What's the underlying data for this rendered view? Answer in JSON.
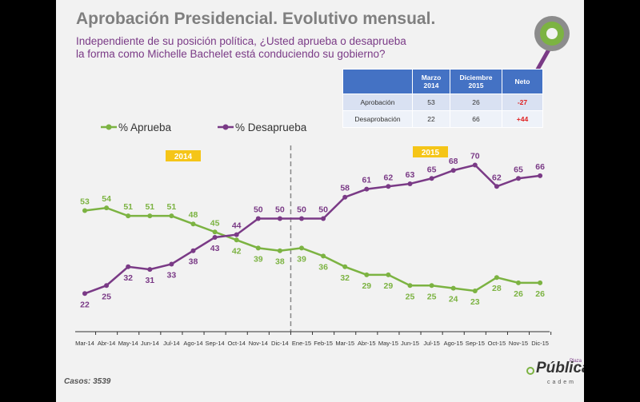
{
  "header": {
    "title": "Aprobación Presidencial. Evolutivo mensual.",
    "subtitle": "Independiente de su posición política, ¿Usted aprueba o desaprueba la forma como Michelle Bachelet está conduciendo su gobierno?"
  },
  "summary_table": {
    "headers": [
      "",
      "Marzo 2014",
      "Diciembre 2015",
      "Neto"
    ],
    "rows": [
      {
        "label": "Aprobación",
        "marzo": "53",
        "diciembre": "26",
        "neto": "-27"
      },
      {
        "label": "Desaprobación",
        "marzo": "22",
        "diciembre": "66",
        "neto": "+44"
      }
    ]
  },
  "footer": {
    "casos": "Casos: 3539"
  },
  "logo": {
    "brand": "Pública",
    "sub": "cadem",
    "plaza": "Plaza"
  },
  "colors": {
    "aprueba": "#7cb342",
    "desaprueba": "#7a3a86",
    "year_badge": "#f5c518"
  },
  "chart_data": {
    "type": "line",
    "categories": [
      "Mar-14",
      "Abr-14",
      "May-14",
      "Jun-14",
      "Jul-14",
      "Ago-14",
      "Sep-14",
      "Oct-14",
      "Nov-14",
      "Dic-14",
      "Ene-15",
      "Feb-15",
      "Mar-15",
      "Abr-15",
      "May-15",
      "Jun-15",
      "Jul-15",
      "Ago-15",
      "Sep-15",
      "Oct-15",
      "Nov-15",
      "Dic-15"
    ],
    "series": [
      {
        "name": "% Aprueba",
        "values": [
          53,
          54,
          51,
          51,
          51,
          48,
          45,
          42,
          39,
          38,
          39,
          36,
          32,
          29,
          29,
          25,
          25,
          24,
          23,
          28,
          26,
          26
        ]
      },
      {
        "name": "% Desaprueba",
        "values": [
          22,
          25,
          32,
          31,
          33,
          38,
          43,
          44,
          50,
          50,
          50,
          50,
          58,
          61,
          62,
          63,
          65,
          68,
          70,
          62,
          65,
          66
        ]
      }
    ],
    "year_labels": [
      "2014",
      "2015"
    ],
    "legend_position": "top-left",
    "divider_between": [
      "Dic-14",
      "Ene-15"
    ],
    "ylim": [
      0,
      80
    ]
  }
}
